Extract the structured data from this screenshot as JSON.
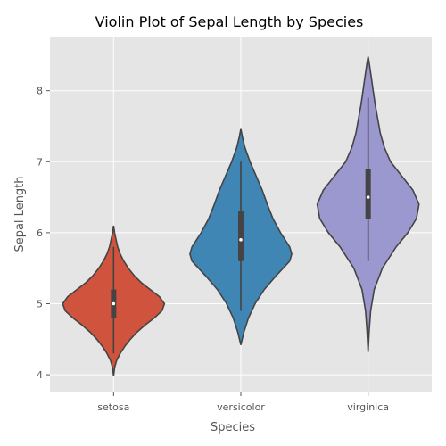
{
  "chart_data": {
    "type": "violin",
    "title": "Violin Plot of Sepal Length by Species",
    "xlabel": "Species",
    "ylabel": "Sepal Length",
    "ylim": [
      3.75,
      8.75
    ],
    "yticks": [
      4,
      5,
      6,
      7,
      8
    ],
    "grid": true,
    "categories": [
      "setosa",
      "versicolor",
      "virginica"
    ],
    "colors": {
      "setosa": "#d0533e",
      "versicolor": "#3f86b5",
      "virginica": "#9b97cf",
      "background": "#e5e5e5",
      "box": "#444444",
      "median": "#ffffff"
    },
    "series": [
      {
        "name": "setosa",
        "min": 4.3,
        "q1": 4.8,
        "median": 5.0,
        "q3": 5.2,
        "max": 5.8,
        "density": [
          [
            3.98,
            0.0
          ],
          [
            4.1,
            0.02
          ],
          [
            4.2,
            0.06
          ],
          [
            4.3,
            0.13
          ],
          [
            4.4,
            0.22
          ],
          [
            4.5,
            0.33
          ],
          [
            4.6,
            0.46
          ],
          [
            4.7,
            0.62
          ],
          [
            4.8,
            0.8
          ],
          [
            4.9,
            0.95
          ],
          [
            5.0,
            1.0
          ],
          [
            5.1,
            0.9
          ],
          [
            5.2,
            0.72
          ],
          [
            5.3,
            0.54
          ],
          [
            5.4,
            0.4
          ],
          [
            5.5,
            0.29
          ],
          [
            5.6,
            0.2
          ],
          [
            5.7,
            0.13
          ],
          [
            5.8,
            0.08
          ],
          [
            5.9,
            0.05
          ],
          [
            6.0,
            0.02
          ],
          [
            6.1,
            0.0
          ]
        ]
      },
      {
        "name": "versicolor",
        "min": 4.9,
        "q1": 5.6,
        "median": 5.9,
        "q3": 6.3,
        "max": 7.0,
        "density": [
          [
            4.42,
            0.0
          ],
          [
            4.6,
            0.06
          ],
          [
            4.8,
            0.15
          ],
          [
            5.0,
            0.28
          ],
          [
            5.2,
            0.46
          ],
          [
            5.4,
            0.7
          ],
          [
            5.6,
            0.96
          ],
          [
            5.7,
            1.0
          ],
          [
            5.8,
            0.96
          ],
          [
            6.0,
            0.78
          ],
          [
            6.2,
            0.63
          ],
          [
            6.4,
            0.52
          ],
          [
            6.6,
            0.42
          ],
          [
            6.8,
            0.3
          ],
          [
            7.0,
            0.18
          ],
          [
            7.2,
            0.08
          ],
          [
            7.35,
            0.03
          ],
          [
            7.46,
            0.0
          ]
        ]
      },
      {
        "name": "virginica",
        "min": 5.6,
        "q1": 6.2,
        "median": 6.5,
        "q3": 6.9,
        "max": 7.9,
        "density": [
          [
            4.32,
            0.0
          ],
          [
            4.6,
            0.02
          ],
          [
            4.9,
            0.05
          ],
          [
            5.2,
            0.12
          ],
          [
            5.5,
            0.28
          ],
          [
            5.8,
            0.55
          ],
          [
            6.0,
            0.78
          ],
          [
            6.2,
            0.95
          ],
          [
            6.4,
            1.0
          ],
          [
            6.6,
            0.88
          ],
          [
            6.8,
            0.66
          ],
          [
            7.0,
            0.44
          ],
          [
            7.2,
            0.32
          ],
          [
            7.4,
            0.24
          ],
          [
            7.6,
            0.19
          ],
          [
            7.8,
            0.14
          ],
          [
            8.0,
            0.1
          ],
          [
            8.2,
            0.06
          ],
          [
            8.4,
            0.02
          ],
          [
            8.48,
            0.0
          ]
        ]
      }
    ]
  }
}
